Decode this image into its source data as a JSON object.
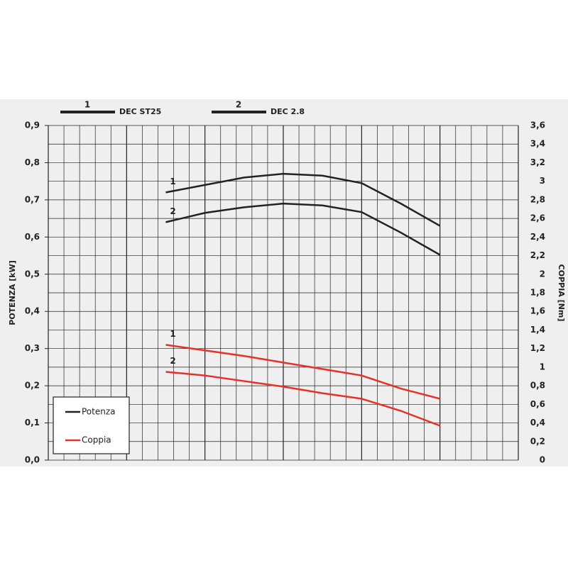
{
  "chart_data": {
    "type": "line",
    "ylabel": "POTENZA [kW]",
    "y2label": "COPPIA [Nm]",
    "models": [
      {
        "number": "1",
        "name": "DEC ST25"
      },
      {
        "number": "2",
        "name": "DEC 2.8"
      }
    ],
    "legend": [
      {
        "label": "Potenza",
        "color": "#222222"
      },
      {
        "label": "Coppia",
        "color": "#e8302a"
      }
    ],
    "xlim": [
      0,
      30
    ],
    "x": [
      7.5,
      10,
      12.5,
      15,
      17.5,
      20,
      22.5,
      25
    ],
    "ylim": [
      0,
      0.9
    ],
    "yticks": [
      {
        "value": 0,
        "label": "0,0"
      },
      {
        "value": 0.1,
        "label": "0,1"
      },
      {
        "value": 0.2,
        "label": "0,2"
      },
      {
        "value": 0.3,
        "label": "0,3"
      },
      {
        "value": 0.4,
        "label": "0,4"
      },
      {
        "value": 0.5,
        "label": "0,5"
      },
      {
        "value": 0.6,
        "label": "0,6"
      },
      {
        "value": 0.7,
        "label": "0,7"
      },
      {
        "value": 0.8,
        "label": "0,8"
      },
      {
        "value": 0.9,
        "label": "0,9"
      }
    ],
    "y2lim": [
      0,
      3.6
    ],
    "y2ticks": [
      0,
      {
        "value": 0.2,
        "label": "0,2"
      },
      {
        "value": 0.4,
        "label": "0,4"
      },
      {
        "value": 0.6,
        "label": "0,6"
      },
      {
        "value": 0.8,
        "label": "0,8"
      },
      1,
      {
        "value": 1.2,
        "label": "1,2"
      },
      {
        "value": 1.4,
        "label": "1,4"
      },
      {
        "value": 1.6,
        "label": "1,6"
      },
      {
        "value": 1.8,
        "label": "1,8"
      },
      2,
      {
        "value": 2.2,
        "label": "2,2"
      },
      {
        "value": 2.4,
        "label": "2,4"
      },
      {
        "value": 2.6,
        "label": "2,6"
      },
      {
        "value": 2.8,
        "label": "2,8"
      },
      3,
      {
        "value": 3.2,
        "label": "3,2"
      },
      {
        "value": 3.4,
        "label": "3,4"
      },
      {
        "value": 3.6,
        "label": "3,6"
      }
    ],
    "grid": true,
    "series": [
      {
        "label": "1",
        "color": "#222222",
        "values": [
          0.72,
          0.74,
          0.76,
          0.77,
          0.765,
          0.745,
          0.69,
          0.63
        ]
      },
      {
        "label": "2",
        "color": "#222222",
        "values": [
          0.64,
          0.665,
          0.68,
          0.69,
          0.685,
          0.667,
          0.612,
          0.552
        ]
      },
      {
        "label": "1",
        "color": "#e8302a",
        "axis": "y2",
        "values": [
          1.24,
          1.18,
          1.12,
          1.05,
          0.98,
          0.91,
          0.77,
          0.66
        ]
      },
      {
        "label": "2",
        "color": "#e8302a",
        "axis": "y2",
        "values": [
          0.95,
          0.91,
          0.85,
          0.79,
          0.72,
          0.66,
          0.53,
          0.37
        ]
      }
    ]
  }
}
